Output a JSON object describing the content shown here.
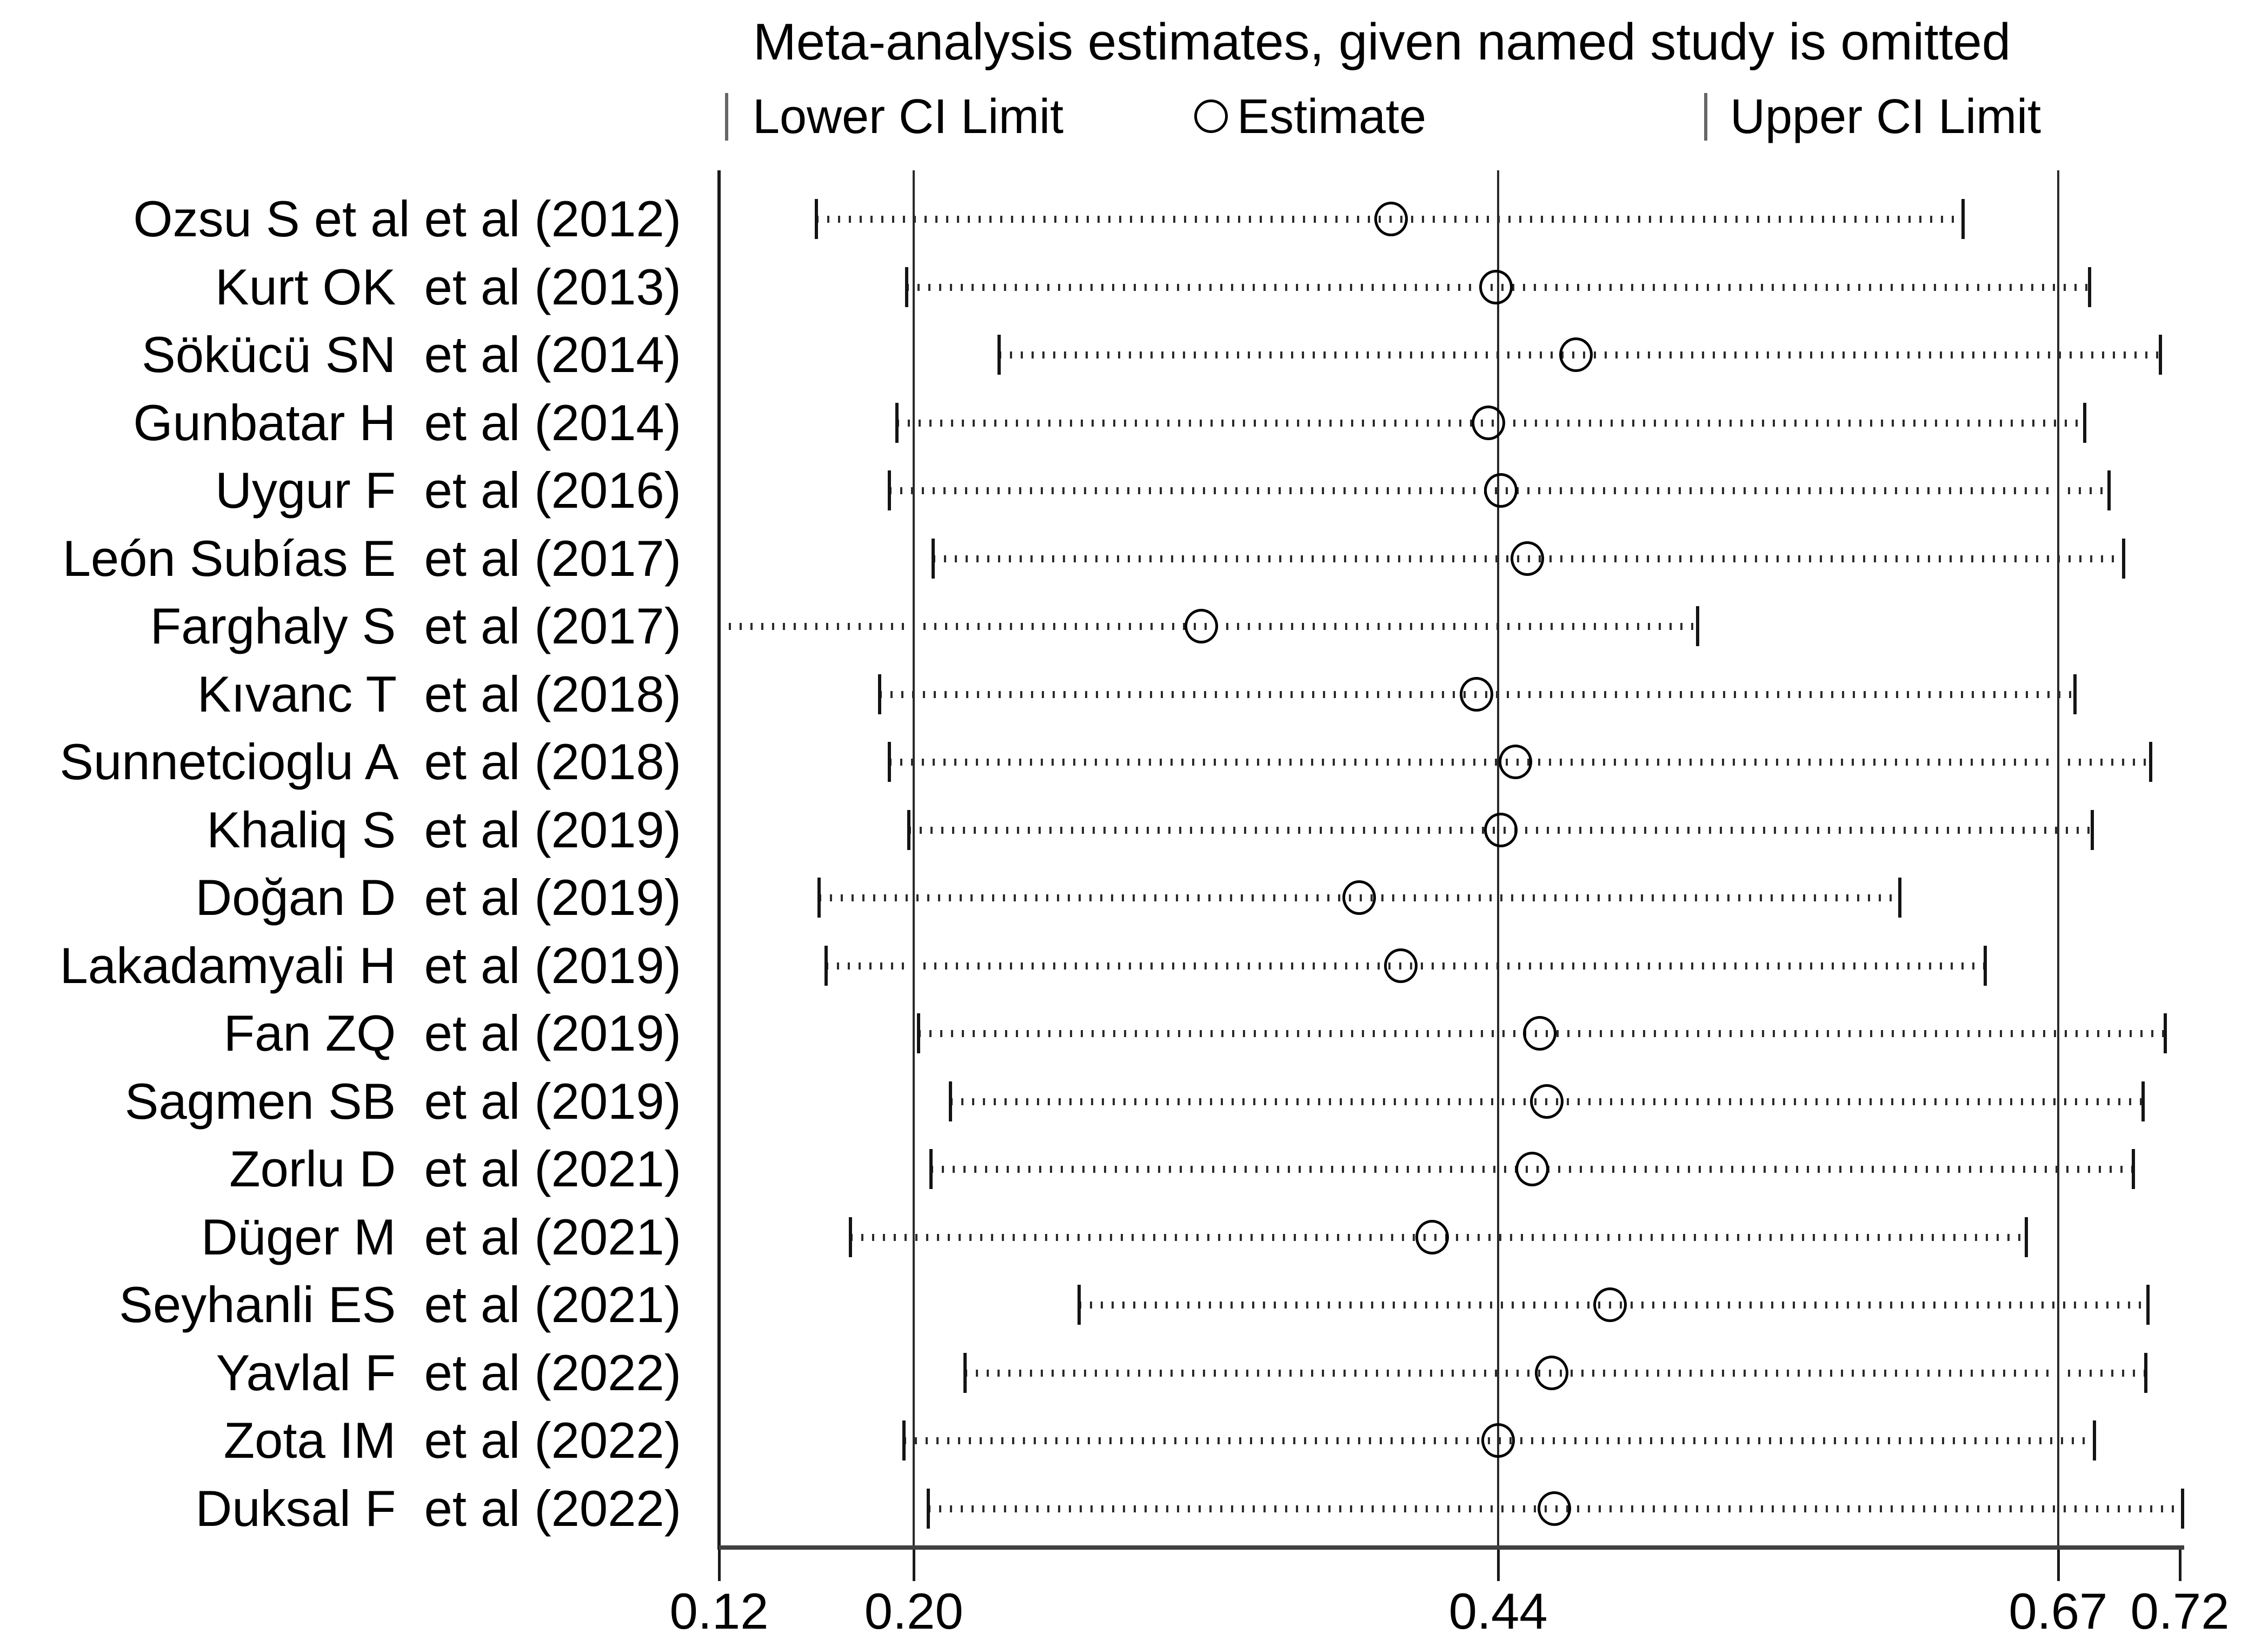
{
  "chart_data": {
    "type": "scatter",
    "variant": "leave-one-out meta-analysis sensitivity (forest) plot",
    "title": "Meta-analysis estimates, given named study is omitted",
    "legend_labels": {
      "lower": "Lower CI Limit",
      "estimate": "Estimate",
      "upper": "Upper CI Limit"
    },
    "legend_icons": [
      "lower-ci-tick",
      "estimate-circle",
      "upper-ci-tick"
    ],
    "legend_position": "top",
    "xlim": [
      0.12,
      0.72
    ],
    "x_tick_values": [
      0.12,
      0.2,
      0.44,
      0.67,
      0.72
    ],
    "x_tick_labels": [
      "0.12",
      "0.20",
      "0.44",
      "0.67",
      "0.72"
    ],
    "reference_line_values": [
      0.2,
      0.44,
      0.67
    ],
    "grid": "vertical-reference-lines-only",
    "marker_color": "#000000",
    "background_color": "#ffffff",
    "studies": [
      {
        "label": "Ozsu S et al et al (2012)",
        "lower": 0.16,
        "estimate": 0.396,
        "upper": 0.631,
        "lower_tick_visible": true
      },
      {
        "label": "Kurt OK  et al (2013)",
        "lower": 0.197,
        "estimate": 0.439,
        "upper": 0.683,
        "lower_tick_visible": true
      },
      {
        "label": "Sökücü SN  et al (2014)",
        "lower": 0.235,
        "estimate": 0.472,
        "upper": 0.712,
        "lower_tick_visible": true
      },
      {
        "label": "Gunbatar H  et al (2014)",
        "lower": 0.193,
        "estimate": 0.436,
        "upper": 0.681,
        "lower_tick_visible": true
      },
      {
        "label": "Uygur F  et al (2016)",
        "lower": 0.19,
        "estimate": 0.441,
        "upper": 0.691,
        "lower_tick_visible": true
      },
      {
        "label": "León Subías E  et al (2017)",
        "lower": 0.208,
        "estimate": 0.452,
        "upper": 0.697,
        "lower_tick_visible": true
      },
      {
        "label": "Farghaly S  et al (2017)",
        "lower": 0.124,
        "estimate": 0.318,
        "upper": 0.522,
        "lower_tick_visible": false
      },
      {
        "label": "Kıvanc T  et al (2018)",
        "lower": 0.186,
        "estimate": 0.431,
        "upper": 0.677,
        "lower_tick_visible": true
      },
      {
        "label": "Sunnetcioglu A  et al (2018)",
        "lower": 0.19,
        "estimate": 0.447,
        "upper": 0.708,
        "lower_tick_visible": true
      },
      {
        "label": "Khaliq S  et al (2019)",
        "lower": 0.198,
        "estimate": 0.441,
        "upper": 0.684,
        "lower_tick_visible": true
      },
      {
        "label": "Doğan D  et al (2019)",
        "lower": 0.161,
        "estimate": 0.383,
        "upper": 0.605,
        "lower_tick_visible": true
      },
      {
        "label": "Lakadamyali H  et al (2019)",
        "lower": 0.164,
        "estimate": 0.4,
        "upper": 0.64,
        "lower_tick_visible": true
      },
      {
        "label": "Fan ZQ  et al (2019)",
        "lower": 0.202,
        "estimate": 0.457,
        "upper": 0.714,
        "lower_tick_visible": true
      },
      {
        "label": "Sagmen SB  et al (2019)",
        "lower": 0.215,
        "estimate": 0.46,
        "upper": 0.705,
        "lower_tick_visible": true
      },
      {
        "label": "Zorlu D  et al (2021)",
        "lower": 0.207,
        "estimate": 0.454,
        "upper": 0.701,
        "lower_tick_visible": true
      },
      {
        "label": "Düger M  et al (2021)",
        "lower": 0.174,
        "estimate": 0.413,
        "upper": 0.657,
        "lower_tick_visible": true
      },
      {
        "label": "Seyhanli ES  et al (2021)",
        "lower": 0.268,
        "estimate": 0.486,
        "upper": 0.707,
        "lower_tick_visible": true
      },
      {
        "label": "Yavlal F  et al (2022)",
        "lower": 0.221,
        "estimate": 0.462,
        "upper": 0.706,
        "lower_tick_visible": true
      },
      {
        "label": "Zota IM  et al (2022)",
        "lower": 0.196,
        "estimate": 0.44,
        "upper": 0.685,
        "lower_tick_visible": true
      },
      {
        "label": "Duksal F  et al (2022)",
        "lower": 0.206,
        "estimate": 0.463,
        "upper": 0.721,
        "lower_tick_visible": true
      }
    ]
  }
}
